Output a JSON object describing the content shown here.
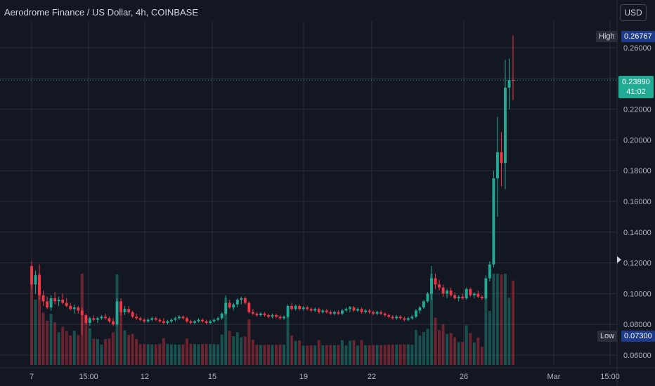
{
  "header": {
    "title": "Aerodrome Finance / US Dollar, 4h, COINBASE",
    "currency_button": "USD"
  },
  "markers": {
    "high_label": "High",
    "high_value": "0.26767",
    "low_label": "Low",
    "low_value": "0.07300",
    "last_price": "0.23890",
    "countdown": "41:02"
  },
  "colors": {
    "up": "#22ab94",
    "down": "#f23645",
    "background": "#131722",
    "grid": "#2a2e39",
    "text": "#b2b5be"
  },
  "chart_data": {
    "type": "candlestick",
    "title": "Aerodrome Finance / US Dollar, 4h, COINBASE",
    "ylim": [
      0.055,
      0.275
    ],
    "y_ticks": [
      "0.26000",
      "0.24000",
      "0.22000",
      "0.20000",
      "0.18000",
      "0.16000",
      "0.14000",
      "0.12000",
      "0.10000",
      "0.08000",
      "0.06000"
    ],
    "x_ticks": [
      "7",
      "15:00",
      "12",
      "15",
      "19",
      "22",
      "26",
      "Mar",
      "15:00"
    ],
    "grid": true,
    "high": 0.26767,
    "low": 0.073,
    "last": 0.2389,
    "candles_ohlc": [
      [
        0.118,
        0.121,
        0.103,
        0.106
      ],
      [
        0.106,
        0.115,
        0.1,
        0.112
      ],
      [
        0.112,
        0.119,
        0.096,
        0.099
      ],
      [
        0.099,
        0.102,
        0.092,
        0.095
      ],
      [
        0.095,
        0.098,
        0.09,
        0.091
      ],
      [
        0.091,
        0.099,
        0.089,
        0.097
      ],
      [
        0.097,
        0.101,
        0.093,
        0.095
      ],
      [
        0.095,
        0.098,
        0.092,
        0.096
      ],
      [
        0.096,
        0.1,
        0.093,
        0.094
      ],
      [
        0.094,
        0.097,
        0.091,
        0.092
      ],
      [
        0.092,
        0.094,
        0.089,
        0.09
      ],
      [
        0.09,
        0.093,
        0.087,
        0.091
      ],
      [
        0.091,
        0.092,
        0.087,
        0.089
      ],
      [
        0.089,
        0.091,
        0.073,
        0.086
      ],
      [
        0.086,
        0.087,
        0.08,
        0.081
      ],
      [
        0.081,
        0.085,
        0.079,
        0.084
      ],
      [
        0.084,
        0.086,
        0.082,
        0.083
      ],
      [
        0.083,
        0.085,
        0.081,
        0.084
      ],
      [
        0.084,
        0.086,
        0.083,
        0.085
      ],
      [
        0.085,
        0.087,
        0.083,
        0.084
      ],
      [
        0.084,
        0.085,
        0.081,
        0.082
      ],
      [
        0.082,
        0.084,
        0.079,
        0.08
      ],
      [
        0.08,
        0.097,
        0.079,
        0.095
      ],
      [
        0.095,
        0.097,
        0.086,
        0.088
      ],
      [
        0.088,
        0.092,
        0.086,
        0.09
      ],
      [
        0.09,
        0.092,
        0.087,
        0.088
      ],
      [
        0.088,
        0.089,
        0.084,
        0.085
      ],
      [
        0.085,
        0.087,
        0.083,
        0.084
      ],
      [
        0.084,
        0.085,
        0.082,
        0.083
      ],
      [
        0.083,
        0.084,
        0.081,
        0.082
      ],
      [
        0.082,
        0.084,
        0.081,
        0.083
      ],
      [
        0.083,
        0.085,
        0.082,
        0.084
      ],
      [
        0.084,
        0.085,
        0.082,
        0.083
      ],
      [
        0.083,
        0.084,
        0.081,
        0.082
      ],
      [
        0.082,
        0.084,
        0.08,
        0.081
      ],
      [
        0.081,
        0.083,
        0.08,
        0.082
      ],
      [
        0.082,
        0.084,
        0.081,
        0.083
      ],
      [
        0.083,
        0.085,
        0.082,
        0.084
      ],
      [
        0.084,
        0.086,
        0.083,
        0.085
      ],
      [
        0.085,
        0.086,
        0.083,
        0.084
      ],
      [
        0.084,
        0.085,
        0.081,
        0.082
      ],
      [
        0.082,
        0.083,
        0.08,
        0.081
      ],
      [
        0.081,
        0.083,
        0.08,
        0.082
      ],
      [
        0.082,
        0.084,
        0.081,
        0.083
      ],
      [
        0.083,
        0.084,
        0.081,
        0.082
      ],
      [
        0.082,
        0.083,
        0.08,
        0.081
      ],
      [
        0.081,
        0.083,
        0.08,
        0.082
      ],
      [
        0.082,
        0.084,
        0.081,
        0.083
      ],
      [
        0.083,
        0.085,
        0.082,
        0.084
      ],
      [
        0.084,
        0.088,
        0.083,
        0.087
      ],
      [
        0.087,
        0.099,
        0.086,
        0.094
      ],
      [
        0.094,
        0.096,
        0.09,
        0.091
      ],
      [
        0.091,
        0.094,
        0.089,
        0.093
      ],
      [
        0.093,
        0.097,
        0.091,
        0.096
      ],
      [
        0.096,
        0.098,
        0.093,
        0.097
      ],
      [
        0.097,
        0.098,
        0.093,
        0.094
      ],
      [
        0.094,
        0.095,
        0.087,
        0.088
      ],
      [
        0.088,
        0.09,
        0.086,
        0.087
      ],
      [
        0.087,
        0.088,
        0.085,
        0.086
      ],
      [
        0.086,
        0.088,
        0.085,
        0.087
      ],
      [
        0.087,
        0.088,
        0.085,
        0.086
      ],
      [
        0.086,
        0.087,
        0.084,
        0.085
      ],
      [
        0.085,
        0.087,
        0.084,
        0.086
      ],
      [
        0.086,
        0.087,
        0.084,
        0.085
      ],
      [
        0.085,
        0.086,
        0.083,
        0.084
      ],
      [
        0.084,
        0.086,
        0.083,
        0.085
      ],
      [
        0.085,
        0.093,
        0.084,
        0.092
      ],
      [
        0.092,
        0.094,
        0.089,
        0.09
      ],
      [
        0.09,
        0.093,
        0.089,
        0.092
      ],
      [
        0.092,
        0.093,
        0.089,
        0.09
      ],
      [
        0.09,
        0.092,
        0.089,
        0.091
      ],
      [
        0.091,
        0.092,
        0.089,
        0.09
      ],
      [
        0.09,
        0.091,
        0.088,
        0.089
      ],
      [
        0.089,
        0.091,
        0.088,
        0.09
      ],
      [
        0.09,
        0.091,
        0.087,
        0.088
      ],
      [
        0.088,
        0.09,
        0.087,
        0.089
      ],
      [
        0.089,
        0.09,
        0.087,
        0.088
      ],
      [
        0.088,
        0.089,
        0.086,
        0.087
      ],
      [
        0.087,
        0.089,
        0.086,
        0.088
      ],
      [
        0.088,
        0.089,
        0.086,
        0.087
      ],
      [
        0.087,
        0.09,
        0.086,
        0.089
      ],
      [
        0.089,
        0.091,
        0.088,
        0.09
      ],
      [
        0.09,
        0.092,
        0.088,
        0.091
      ],
      [
        0.091,
        0.092,
        0.088,
        0.089
      ],
      [
        0.089,
        0.091,
        0.088,
        0.09
      ],
      [
        0.09,
        0.091,
        0.087,
        0.088
      ],
      [
        0.088,
        0.09,
        0.087,
        0.089
      ],
      [
        0.089,
        0.09,
        0.087,
        0.088
      ],
      [
        0.088,
        0.089,
        0.086,
        0.087
      ],
      [
        0.087,
        0.089,
        0.086,
        0.088
      ],
      [
        0.088,
        0.089,
        0.086,
        0.087
      ],
      [
        0.087,
        0.088,
        0.085,
        0.086
      ],
      [
        0.086,
        0.087,
        0.084,
        0.085
      ],
      [
        0.085,
        0.086,
        0.083,
        0.084
      ],
      [
        0.084,
        0.086,
        0.083,
        0.085
      ],
      [
        0.085,
        0.086,
        0.083,
        0.084
      ],
      [
        0.084,
        0.085,
        0.082,
        0.083
      ],
      [
        0.083,
        0.085,
        0.082,
        0.084
      ],
      [
        0.084,
        0.086,
        0.083,
        0.085
      ],
      [
        0.085,
        0.09,
        0.084,
        0.089
      ],
      [
        0.089,
        0.092,
        0.087,
        0.091
      ],
      [
        0.091,
        0.096,
        0.09,
        0.095
      ],
      [
        0.095,
        0.101,
        0.094,
        0.1
      ],
      [
        0.1,
        0.118,
        0.096,
        0.11
      ],
      [
        0.11,
        0.113,
        0.103,
        0.106
      ],
      [
        0.106,
        0.109,
        0.102,
        0.104
      ],
      [
        0.104,
        0.106,
        0.098,
        0.1
      ],
      [
        0.1,
        0.103,
        0.097,
        0.102
      ],
      [
        0.102,
        0.104,
        0.098,
        0.099
      ],
      [
        0.099,
        0.101,
        0.096,
        0.097
      ],
      [
        0.097,
        0.099,
        0.095,
        0.098
      ],
      [
        0.098,
        0.1,
        0.096,
        0.097
      ],
      [
        0.097,
        0.104,
        0.096,
        0.103
      ],
      [
        0.103,
        0.104,
        0.098,
        0.099
      ],
      [
        0.099,
        0.101,
        0.097,
        0.1
      ],
      [
        0.1,
        0.102,
        0.097,
        0.098
      ],
      [
        0.098,
        0.099,
        0.096,
        0.097
      ],
      [
        0.097,
        0.112,
        0.096,
        0.11
      ],
      [
        0.11,
        0.121,
        0.108,
        0.119
      ],
      [
        0.119,
        0.18,
        0.117,
        0.175
      ],
      [
        0.175,
        0.215,
        0.15,
        0.192
      ],
      [
        0.192,
        0.205,
        0.17,
        0.185
      ],
      [
        0.185,
        0.252,
        0.168,
        0.234
      ],
      [
        0.234,
        0.253,
        0.22,
        0.239
      ],
      [
        0.239,
        0.268,
        0.226,
        0.2389
      ]
    ]
  }
}
